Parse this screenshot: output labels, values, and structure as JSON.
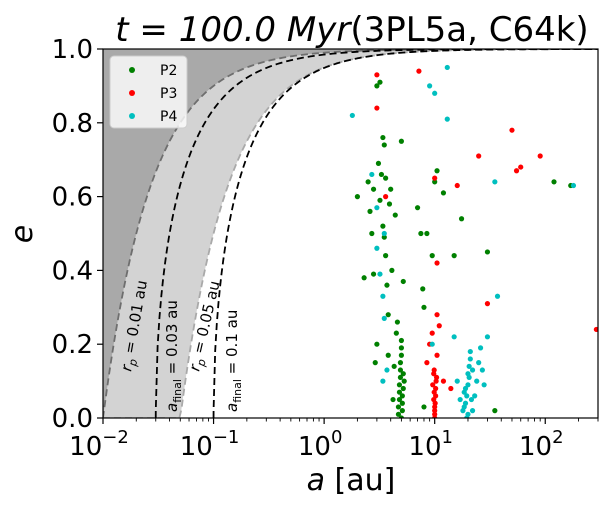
{
  "chart_data": {
    "type": "scatter",
    "title_main": "t = 100.0 Myr",
    "title_run": "(3PL5a, C64k)",
    "xlabel_symbol": "a",
    "xlabel_unit": " [au]",
    "ylabel": "e",
    "xscale": "log",
    "xlim": [
      0.01,
      300
    ],
    "ylim": [
      0.0,
      1.0
    ],
    "x_ticks": [
      {
        "value": 0.01,
        "base": "10",
        "exp": "−2"
      },
      {
        "value": 0.1,
        "base": "10",
        "exp": "−1"
      },
      {
        "value": 1,
        "base": "10",
        "exp": "0"
      },
      {
        "value": 10,
        "base": "10",
        "exp": "1"
      },
      {
        "value": 100,
        "base": "10",
        "exp": "2"
      }
    ],
    "y_ticks": [
      {
        "value": 0.0,
        "label": "0.0"
      },
      {
        "value": 0.2,
        "label": "0.2"
      },
      {
        "value": 0.4,
        "label": "0.4"
      },
      {
        "value": 0.6,
        "label": "0.6"
      },
      {
        "value": 0.8,
        "label": "0.8"
      },
      {
        "value": 1.0,
        "label": "1.0"
      }
    ],
    "regions": [
      {
        "name": "dark-region",
        "desc": "r_p < 0.01 au",
        "color": "#a9a9a9"
      },
      {
        "name": "light-region",
        "desc": "0.01 au < r_p < 0.05 au",
        "color": "#d3d3d3"
      }
    ],
    "curves": [
      {
        "name": "rp-0.01-curve",
        "kind": "pericenter",
        "value": 0.01,
        "label": "r_p = 0.01 au",
        "color": "#6e6e6e"
      },
      {
        "name": "afinal-0.03-curve",
        "kind": "afinal",
        "value": 0.03,
        "label": "a_final = 0.03 au",
        "color": "#000000"
      },
      {
        "name": "rp-0.05-curve",
        "kind": "pericenter",
        "value": 0.05,
        "label": "r_p = 0.05 au",
        "color": "#a9a9a9"
      },
      {
        "name": "afinal-0.1-curve",
        "kind": "afinal",
        "value": 0.1,
        "label": "a_final = 0.1 au",
        "color": "#000000"
      }
    ],
    "curve_labels": [
      {
        "name": "rp-0.01-label",
        "prefix": "r",
        "sub": "p",
        "rest": " = 0.01 au",
        "color": "#000000"
      },
      {
        "name": "afinal-0.03-label",
        "prefix": "a",
        "sub": "final",
        "rest": " = 0.03 au",
        "color": "#000000"
      },
      {
        "name": "rp-0.05-label",
        "prefix": "r",
        "sub": "p",
        "rest": " = 0.05 au",
        "color": "#000000"
      },
      {
        "name": "afinal-0.1-label",
        "prefix": "a",
        "sub": "final",
        "rest": " = 0.1 au",
        "color": "#000000"
      }
    ],
    "legend_position": "upper-left",
    "series": [
      {
        "name": "P2",
        "color": "#008000",
        "points": [
          [
            2.0,
            0.6
          ],
          [
            2.3,
            0.38
          ],
          [
            2.5,
            0.64
          ],
          [
            2.6,
            0.56
          ],
          [
            2.7,
            0.5
          ],
          [
            2.8,
            0.62
          ],
          [
            2.9,
            0.15
          ],
          [
            3.0,
            0.9
          ],
          [
            3.1,
            0.69
          ],
          [
            3.2,
            0.59
          ],
          [
            3.3,
            0.66
          ],
          [
            3.4,
            0.76
          ],
          [
            3.4,
            0.52
          ],
          [
            3.5,
            0.74
          ],
          [
            3.5,
            0.49
          ],
          [
            3.6,
            0.65
          ],
          [
            3.6,
            0.44
          ],
          [
            3.7,
            0.36
          ],
          [
            3.8,
            0.28
          ],
          [
            3.8,
            0.17
          ],
          [
            3.9,
            0.58
          ],
          [
            4.0,
            0.62
          ],
          [
            4.1,
            0.4
          ],
          [
            4.2,
            0.05
          ],
          [
            4.3,
            0.14
          ],
          [
            4.4,
            0.55
          ],
          [
            4.5,
            0.23
          ],
          [
            3.0,
            0.2
          ],
          [
            2.8,
            0.39
          ],
          [
            3.2,
            0.91
          ],
          [
            4.7,
            0.01
          ],
          [
            4.7,
            0.03
          ],
          [
            4.8,
            0.05
          ],
          [
            4.8,
            0.07
          ],
          [
            4.8,
            0.09
          ],
          [
            4.9,
            0.11
          ],
          [
            4.9,
            0.13
          ],
          [
            4.9,
            0.15
          ],
          [
            5.0,
            0.17
          ],
          [
            5.0,
            0.19
          ],
          [
            5.0,
            0.21
          ],
          [
            5.1,
            0.02
          ],
          [
            5.1,
            0.04
          ],
          [
            5.1,
            0.06
          ],
          [
            5.2,
            0.08
          ],
          [
            5.2,
            0.12
          ],
          [
            5.0,
            0.0
          ],
          [
            5.3,
            0.1
          ],
          [
            5.2,
            0.37
          ],
          [
            5.0,
            0.75
          ],
          [
            4.6,
            0.26
          ],
          [
            7.0,
            0.57
          ],
          [
            7.5,
            0.5
          ],
          [
            7.8,
            0.35
          ],
          [
            8.0,
            0.3
          ],
          [
            8.0,
            0.03
          ],
          [
            8.5,
            0.5
          ],
          [
            9.5,
            0.44
          ],
          [
            10.0,
            0.64
          ],
          [
            10.5,
            0.67
          ],
          [
            12.0,
            0.61
          ],
          [
            15.0,
            0.44
          ],
          [
            17.5,
            0.54
          ],
          [
            30.0,
            0.45
          ],
          [
            35.0,
            0.02
          ],
          [
            120.0,
            0.64
          ],
          [
            170.0,
            0.63
          ]
        ]
      },
      {
        "name": "P3",
        "color": "#ff0000",
        "points": [
          [
            3.0,
            0.93
          ],
          [
            3.0,
            0.84
          ],
          [
            3.6,
            0.6
          ],
          [
            7.2,
            0.94
          ],
          [
            8.5,
            0.15
          ],
          [
            9.0,
            0.2
          ],
          [
            9.5,
            0.23
          ],
          [
            9.8,
            0.12
          ],
          [
            9.6,
            0.09
          ],
          [
            9.8,
            0.05
          ],
          [
            9.9,
            0.07
          ],
          [
            10.0,
            0.02
          ],
          [
            10.0,
            0.01
          ],
          [
            10.0,
            0.03
          ],
          [
            10.0,
            0.0
          ],
          [
            10.1,
            0.04
          ],
          [
            10.2,
            0.06
          ],
          [
            10.2,
            0.08
          ],
          [
            10.3,
            0.1
          ],
          [
            10.4,
            0.11
          ],
          [
            9.9,
            0.13
          ],
          [
            10.5,
            0.42
          ],
          [
            10.0,
            0.65
          ],
          [
            10.5,
            0.28
          ],
          [
            10.5,
            0.17
          ],
          [
            11.0,
            0.25
          ],
          [
            12.0,
            0.1
          ],
          [
            14.0,
            0.08
          ],
          [
            16.0,
            0.63
          ],
          [
            25.0,
            0.71
          ],
          [
            30.0,
            0.31
          ],
          [
            50.0,
            0.78
          ],
          [
            55.0,
            0.67
          ],
          [
            60.0,
            0.68
          ],
          [
            90.0,
            0.71
          ],
          [
            290.0,
            0.24
          ]
        ]
      },
      {
        "name": "P4",
        "color": "#00bfbf",
        "points": [
          [
            1.8,
            0.82
          ],
          [
            2.7,
            0.66
          ],
          [
            3.0,
            0.57
          ],
          [
            3.0,
            0.46
          ],
          [
            3.2,
            0.39
          ],
          [
            3.4,
            0.33
          ],
          [
            3.5,
            0.5
          ],
          [
            3.5,
            0.27
          ],
          [
            3.4,
            0.1
          ],
          [
            3.7,
            0.13
          ],
          [
            9.0,
            0.9
          ],
          [
            10.0,
            0.88
          ],
          [
            13.0,
            0.95
          ],
          [
            13.0,
            0.81
          ],
          [
            9.5,
            0.2
          ],
          [
            15.0,
            0.22
          ],
          [
            16.0,
            0.1
          ],
          [
            17.0,
            0.05
          ],
          [
            18.0,
            0.02
          ],
          [
            18.5,
            0.03
          ],
          [
            18.5,
            0.07
          ],
          [
            19.0,
            0.08
          ],
          [
            19.0,
            0.04
          ],
          [
            19.5,
            0.0
          ],
          [
            19.5,
            0.06
          ],
          [
            20.0,
            0.01
          ],
          [
            20.0,
            0.12
          ],
          [
            20.0,
            0.09
          ],
          [
            20.5,
            0.11
          ],
          [
            20.5,
            0.14
          ],
          [
            21.0,
            0.16
          ],
          [
            21.5,
            0.05
          ],
          [
            21.0,
            0.18
          ],
          [
            22.0,
            0.13
          ],
          [
            22.0,
            0.02
          ],
          [
            23.0,
            0.06
          ],
          [
            24.0,
            0.1
          ],
          [
            25.0,
            0.15
          ],
          [
            26.0,
            0.19
          ],
          [
            27.0,
            0.13
          ],
          [
            28.0,
            0.09
          ],
          [
            30.0,
            0.22
          ],
          [
            35.0,
            0.64
          ],
          [
            37.0,
            0.33
          ],
          [
            180.0,
            0.63
          ]
        ]
      }
    ]
  }
}
